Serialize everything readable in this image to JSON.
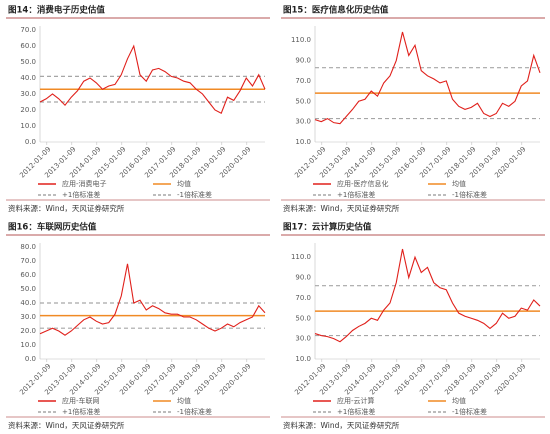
{
  "chart_data": [
    {
      "type": "line",
      "title": "图14：消费电子历史估值",
      "source": "资料来源：Wind，天风证券研究所",
      "x": [
        "2011-10",
        "2012-01",
        "2012-04",
        "2012-07",
        "2012-10",
        "2013-01",
        "2013-04",
        "2013-07",
        "2013-10",
        "2014-01",
        "2014-04",
        "2014-07",
        "2014-10",
        "2015-01",
        "2015-04",
        "2015-07",
        "2015-10",
        "2016-01",
        "2016-04",
        "2016-07",
        "2016-10",
        "2017-01",
        "2017-04",
        "2017-07",
        "2017-10",
        "2018-01",
        "2018-04",
        "2018-07",
        "2018-10",
        "2019-01",
        "2019-04",
        "2019-07",
        "2019-10",
        "2020-01",
        "2020-04",
        "2020-07",
        "2020-10"
      ],
      "series": [
        {
          "name": "应用-消费电子",
          "color": "#e0201b",
          "values": [
            25,
            27,
            30,
            27,
            23,
            28,
            32,
            38,
            40,
            37,
            33,
            35,
            36,
            42,
            52,
            60,
            42,
            38,
            45,
            46,
            44,
            41,
            40,
            38,
            37,
            33,
            30,
            25,
            20,
            18,
            28,
            26,
            32,
            40,
            35,
            42,
            33
          ]
        }
      ],
      "reference_lines": [
        {
          "name": "均值",
          "value": 33,
          "color": "#f08a24",
          "dashed": false
        },
        {
          "name": "+1倍标准差",
          "value": 41,
          "color": "#a6a6a6",
          "dashed": true
        },
        {
          "name": "-1倍标准差",
          "value": 25,
          "color": "#a6a6a6",
          "dashed": true
        }
      ],
      "xlim": [
        "2011-10",
        "2020-10"
      ],
      "xticks": [
        "2012-01-09",
        "2013-01-09",
        "2014-01-09",
        "2015-01-09",
        "2016-01-09",
        "2017-01-09",
        "2018-01-09",
        "2019-01-09",
        "2020-01-09"
      ],
      "ylim": [
        0,
        70
      ],
      "yticks": [
        {
          "value": 0,
          "label": "0.0"
        },
        {
          "value": 10,
          "label": "10.0"
        },
        {
          "value": 20,
          "label": "20.0"
        },
        {
          "value": 30,
          "label": "30.0"
        },
        {
          "value": 40,
          "label": "40.0"
        },
        {
          "value": 50,
          "label": "50.0"
        },
        {
          "value": 60,
          "label": "60.0"
        },
        {
          "value": 70,
          "label": "70.0"
        }
      ]
    },
    {
      "type": "line",
      "title": "图15：医疗信息化历史估值",
      "source": "资料来源：Wind，天风证券研究所",
      "x": [
        "2011-10",
        "2012-01",
        "2012-04",
        "2012-07",
        "2012-10",
        "2013-01",
        "2013-04",
        "2013-07",
        "2013-10",
        "2014-01",
        "2014-04",
        "2014-07",
        "2014-10",
        "2015-01",
        "2015-04",
        "2015-07",
        "2015-10",
        "2016-01",
        "2016-04",
        "2016-07",
        "2016-10",
        "2017-01",
        "2017-04",
        "2017-07",
        "2017-10",
        "2018-01",
        "2018-04",
        "2018-07",
        "2018-10",
        "2019-01",
        "2019-04",
        "2019-07",
        "2019-10",
        "2020-01",
        "2020-04",
        "2020-07",
        "2020-10"
      ],
      "series": [
        {
          "name": "应用-医疗信息化",
          "color": "#e0201b",
          "values": [
            32,
            30,
            33,
            29,
            28,
            35,
            42,
            50,
            52,
            60,
            55,
            68,
            75,
            90,
            118,
            95,
            105,
            80,
            75,
            72,
            68,
            70,
            52,
            45,
            42,
            44,
            48,
            38,
            35,
            38,
            48,
            45,
            50,
            65,
            70,
            95,
            78
          ]
        }
      ],
      "reference_lines": [
        {
          "name": "均值",
          "value": 58,
          "color": "#f08a24",
          "dashed": false
        },
        {
          "name": "+1倍标准差",
          "value": 83,
          "color": "#a6a6a6",
          "dashed": true
        },
        {
          "name": "-1倍标准差",
          "value": 33,
          "color": "#a6a6a6",
          "dashed": true
        }
      ],
      "xlim": [
        "2011-10",
        "2020-10"
      ],
      "xticks": [
        "2012-01-09",
        "2013-01-09",
        "2014-01-09",
        "2015-01-09",
        "2016-01-09",
        "2017-01-09",
        "2018-01-09",
        "2019-01-09",
        "2020-01-09"
      ],
      "ylim": [
        10,
        120
      ],
      "yticks": [
        {
          "value": 10,
          "label": "10.0"
        },
        {
          "value": 30,
          "label": "30.0"
        },
        {
          "value": 50,
          "label": "50.0"
        },
        {
          "value": 70,
          "label": "70.0"
        },
        {
          "value": 90,
          "label": "90.0"
        },
        {
          "value": 110,
          "label": "110.0"
        }
      ]
    },
    {
      "type": "line",
      "title": "图16：车联网历史估值",
      "source": "资料来源：Wind，天风证券研究所",
      "x": [
        "2011-10",
        "2012-01",
        "2012-04",
        "2012-07",
        "2012-10",
        "2013-01",
        "2013-04",
        "2013-07",
        "2013-10",
        "2014-01",
        "2014-04",
        "2014-07",
        "2014-10",
        "2015-01",
        "2015-04",
        "2015-07",
        "2015-10",
        "2016-01",
        "2016-04",
        "2016-07",
        "2016-10",
        "2017-01",
        "2017-04",
        "2017-07",
        "2017-10",
        "2018-01",
        "2018-04",
        "2018-07",
        "2018-10",
        "2019-01",
        "2019-04",
        "2019-07",
        "2019-10",
        "2020-01",
        "2020-04",
        "2020-07",
        "2020-10"
      ],
      "series": [
        {
          "name": "应用-车联网",
          "color": "#e0201b",
          "values": [
            18,
            20,
            22,
            20,
            17,
            20,
            24,
            28,
            30,
            27,
            25,
            26,
            32,
            45,
            68,
            40,
            42,
            35,
            38,
            36,
            33,
            32,
            32,
            30,
            30,
            28,
            25,
            22,
            20,
            22,
            25,
            23,
            26,
            28,
            30,
            38,
            33
          ]
        }
      ],
      "reference_lines": [
        {
          "name": "均值",
          "value": 31,
          "color": "#f08a24",
          "dashed": false
        },
        {
          "name": "+1倍标准差",
          "value": 40,
          "color": "#a6a6a6",
          "dashed": true
        },
        {
          "name": "-1倍标准差",
          "value": 22,
          "color": "#a6a6a6",
          "dashed": true
        }
      ],
      "xlim": [
        "2011-10",
        "2020-10"
      ],
      "xticks": [
        "2012-01-09",
        "2013-01-09",
        "2014-01-09",
        "2015-01-09",
        "2016-01-09",
        "2017-01-09",
        "2018-01-09",
        "2019-01-09",
        "2020-01-09"
      ],
      "ylim": [
        0,
        80
      ],
      "yticks": [
        {
          "value": 0,
          "label": "0.0"
        },
        {
          "value": 10,
          "label": "10.0"
        },
        {
          "value": 20,
          "label": "20.0"
        },
        {
          "value": 30,
          "label": "30.0"
        },
        {
          "value": 40,
          "label": "40.0"
        },
        {
          "value": 50,
          "label": "50.0"
        },
        {
          "value": 60,
          "label": "60.0"
        },
        {
          "value": 70,
          "label": "70.0"
        },
        {
          "value": 80,
          "label": "80.0"
        }
      ]
    },
    {
      "type": "line",
      "title": "图17：云计算历史估值",
      "source": "资料来源：Wind，天风证券研究所",
      "x": [
        "2011-10",
        "2012-01",
        "2012-04",
        "2012-07",
        "2012-10",
        "2013-01",
        "2013-04",
        "2013-07",
        "2013-10",
        "2014-01",
        "2014-04",
        "2014-07",
        "2014-10",
        "2015-01",
        "2015-04",
        "2015-07",
        "2015-10",
        "2016-01",
        "2016-04",
        "2016-07",
        "2016-10",
        "2017-01",
        "2017-04",
        "2017-07",
        "2017-10",
        "2018-01",
        "2018-04",
        "2018-07",
        "2018-10",
        "2019-01",
        "2019-04",
        "2019-07",
        "2019-10",
        "2020-01",
        "2020-04",
        "2020-07",
        "2020-10"
      ],
      "series": [
        {
          "name": "应用-云计算",
          "color": "#e0201b",
          "values": [
            35,
            33,
            32,
            30,
            27,
            32,
            38,
            42,
            45,
            50,
            48,
            58,
            65,
            85,
            118,
            90,
            110,
            95,
            100,
            85,
            80,
            78,
            65,
            55,
            52,
            50,
            48,
            45,
            40,
            45,
            55,
            50,
            52,
            60,
            58,
            68,
            62
          ]
        }
      ],
      "reference_lines": [
        {
          "name": "均值",
          "value": 57,
          "color": "#f08a24",
          "dashed": false
        },
        {
          "name": "+1倍标准差",
          "value": 82,
          "color": "#a6a6a6",
          "dashed": true
        },
        {
          "name": "-1倍标准差",
          "value": 33,
          "color": "#a6a6a6",
          "dashed": true
        }
      ],
      "xlim": [
        "2011-10",
        "2020-10"
      ],
      "xticks": [
        "2012-01-09",
        "2013-01-09",
        "2014-01-09",
        "2015-01-09",
        "2016-01-09",
        "2017-01-09",
        "2018-01-09",
        "2019-01-09",
        "2020-01-09"
      ],
      "ylim": [
        10,
        120
      ],
      "yticks": [
        {
          "value": 10,
          "label": "10.0"
        },
        {
          "value": 30,
          "label": "30.0"
        },
        {
          "value": 50,
          "label": "50.0"
        },
        {
          "value": 70,
          "label": "70.0"
        },
        {
          "value": 90,
          "label": "90.0"
        },
        {
          "value": 110,
          "label": "110.0"
        }
      ]
    }
  ]
}
